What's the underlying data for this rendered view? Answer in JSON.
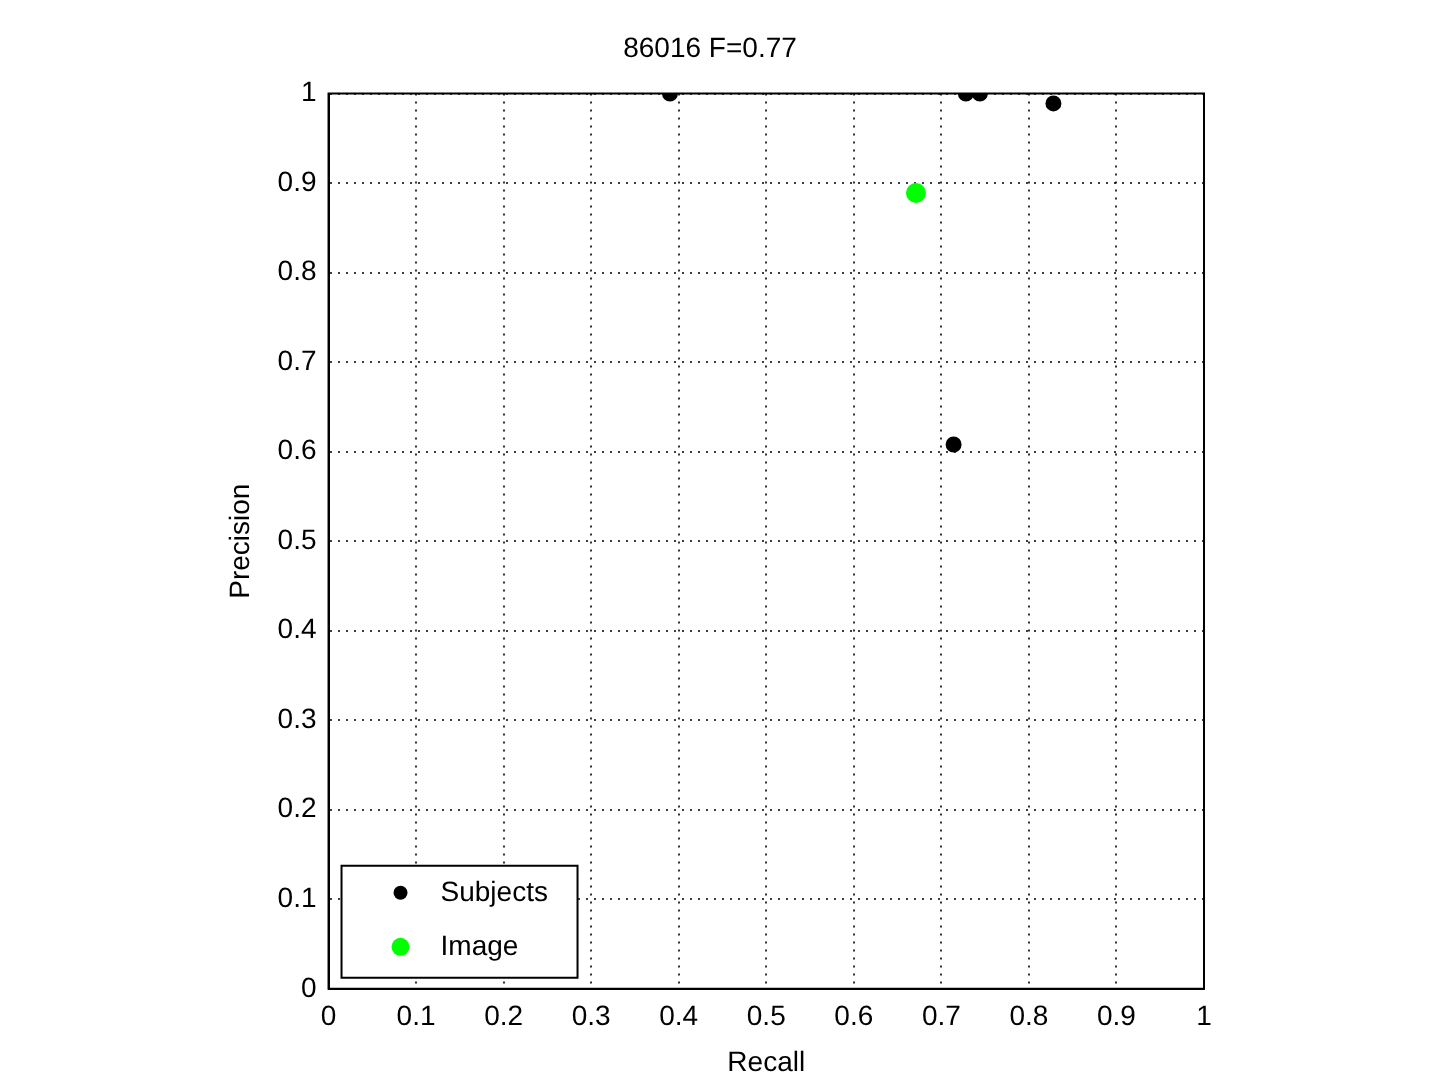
{
  "chart_data": {
    "type": "scatter",
    "title": "86016 F=0.77",
    "xlabel": "Recall",
    "ylabel": "Precision",
    "xlim": [
      0,
      1
    ],
    "ylim": [
      0,
      1
    ],
    "xticks": [
      0,
      0.1,
      0.2,
      0.3,
      0.4,
      0.5,
      0.6,
      0.7,
      0.8,
      0.9,
      1
    ],
    "yticks": [
      0,
      0.1,
      0.2,
      0.3,
      0.4,
      0.5,
      0.6,
      0.7,
      0.8,
      0.9,
      1
    ],
    "grid": true,
    "legend": "bottom left",
    "marker": "circle",
    "series": [
      {
        "name": "Subjects",
        "color": "#000000",
        "x": [
          0.39,
          0.728,
          0.744,
          0.828,
          0.714
        ],
        "values": [
          1.0,
          1.0,
          1.0,
          0.989,
          0.608
        ]
      },
      {
        "name": "Image",
        "color": "#00ff00",
        "x": [
          0.671
        ],
        "values": [
          0.889
        ]
      }
    ]
  }
}
